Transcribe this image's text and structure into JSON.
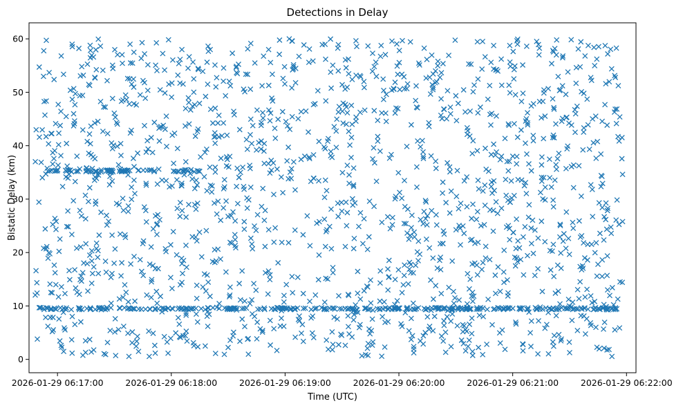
{
  "chart_data": {
    "type": "scatter",
    "title": "Detections in Delay",
    "xlabel": "Time (UTC)",
    "ylabel": "Bistatic Delay (km)",
    "marker": "x",
    "color": "#1f77b4",
    "grid": false,
    "legend": "none",
    "x_axis": {
      "kind": "datetime",
      "range": [
        "2026-01-29 06:16:45",
        "2026-01-29 06:22:05"
      ],
      "ticks": [
        "2026-01-29 06:17:00",
        "2026-01-29 06:18:00",
        "2026-01-29 06:19:00",
        "2026-01-29 06:20:00",
        "2026-01-29 06:21:00",
        "2026-01-29 06:22:00"
      ],
      "data_range": [
        "2026-01-29 06:16:48",
        "2026-01-29 06:21:58"
      ]
    },
    "y_axis": {
      "range": [
        -2.5,
        63
      ],
      "ticks": [
        0,
        10,
        20,
        30,
        40,
        50,
        60
      ]
    },
    "points_summary": {
      "count": 2000,
      "y_range": [
        0.5,
        60
      ],
      "dense_bands": [
        {
          "y": 9.5,
          "x_range": [
            "2026-01-29 06:16:50",
            "2026-01-29 06:21:55"
          ]
        },
        {
          "y": 35.3,
          "x_range": [
            "2026-01-29 06:16:55",
            "2026-01-29 06:18:15"
          ]
        }
      ]
    }
  }
}
